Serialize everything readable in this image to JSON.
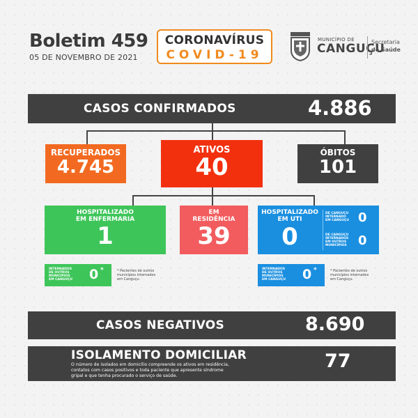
{
  "header": {
    "title": "Boletim 459",
    "date": "05 DE NOVEMBRO DE 2021",
    "covid_line1": "CORONAVÍRUS",
    "covid_line2": "COVID-19",
    "municipio_small": "MUNICÍPIO DE",
    "municipio_name": "CANGUÇU",
    "secretaria_line1": "Secretaria",
    "secretaria_line2": "de Saúde"
  },
  "confirmados": {
    "label": "CASOS CONFIRMADOS",
    "value": "4.886"
  },
  "recuperados": {
    "label": "RECUPERADOS",
    "value": "4.745"
  },
  "ativos": {
    "label": "ATIVOS",
    "value": "40"
  },
  "obitos": {
    "label": "ÓBITOS",
    "value": "101"
  },
  "enfermaria": {
    "label1": "HOSPITALIZADO",
    "label2": "EM ENFERMARIA",
    "value": "1",
    "sub_label1": "INTERNADOS",
    "sub_label2": "DE OUTROS",
    "sub_label3": "MUNICÍPIOS",
    "sub_label4": "EM CANGUÇU",
    "sub_value": "0",
    "sub_mark": "*",
    "note1": "* Pacientes de outros",
    "note2": "municípios internados",
    "note3": "em Canguçu."
  },
  "residencia": {
    "label1": "EM",
    "label2": "RESIDÊNCIA",
    "value": "39"
  },
  "uti": {
    "label1": "HOSPITALIZADO",
    "label2": "EM UTI",
    "value": "0",
    "side1_l1": "DE CANGUÇU",
    "side1_l2": "INTERNADO",
    "side1_l3": "EM CANGUÇU",
    "side1_value": "0",
    "side2_l1": "DE CANGUÇU",
    "side2_l2": "INTERNADOS",
    "side2_l3": "EM OUTROS",
    "side2_l4": "MUNICÍPIOS",
    "side2_value": "0",
    "sub_label1": "INTERNADOS",
    "sub_label2": "DE OUTROS",
    "sub_label3": "MUNICÍPIOS",
    "sub_label4": "EM CANGUÇU",
    "sub_value": "0",
    "sub_mark": "*",
    "note1": "* Pacientes de outros",
    "note2": "municípios internados",
    "note3": "em Canguçu."
  },
  "negativos": {
    "label": "CASOS NEGATIVOS",
    "value": "8.690"
  },
  "isolamento": {
    "label": "ISOLAMENTO DOMICILIAR",
    "desc1": "O número de isolados em domicílio compreende os ativos em residência,",
    "desc2": "contatos com casos positivos e toda paciente que apresente síndrome",
    "desc3": "gripal e que tenha procurado o serviço de saúde.",
    "value": "77"
  },
  "colors": {
    "dark": "#404040",
    "orange": "#f26a21",
    "red": "#f2300e",
    "green": "#3ec55a",
    "pink": "#f25c5e",
    "blue": "#1a8fe0",
    "covid_orange": "#f08a1e"
  }
}
